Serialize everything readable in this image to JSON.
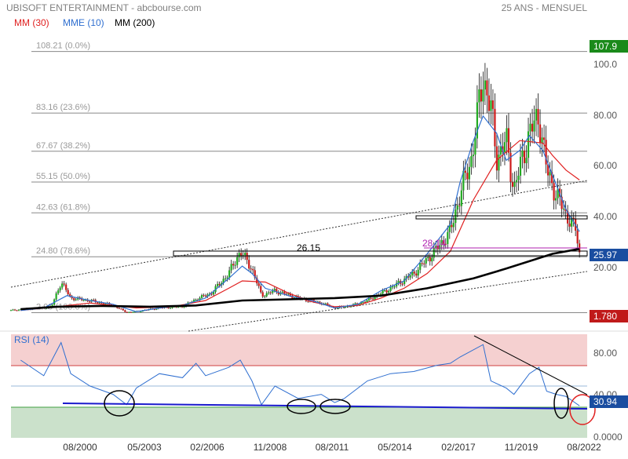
{
  "header": {
    "title": "UBISOFT ENTERTAINMENT - abcbourse.com",
    "period": "25 ANS - MENSUEL",
    "legend": [
      {
        "label": "MM (30)",
        "color": "#e02020"
      },
      {
        "label": "MME (10)",
        "color": "#2f6fd0"
      },
      {
        "label": "MM (200)",
        "color": "#000000"
      }
    ]
  },
  "price_panel": {
    "y_ticks": [
      "100.0",
      "80.00",
      "60.00",
      "40.00",
      "20.00"
    ],
    "last_label": "107.9",
    "current_label": "25.97",
    "low_label": "1.780",
    "fib_levels": [
      {
        "label": "108.21  (0.0%)",
        "value": 108.21
      },
      {
        "label": "83.16  (23.6%)",
        "value": 83.16
      },
      {
        "label": "67.67  (38.2%)",
        "value": 67.67
      },
      {
        "label": "55.15  (50.0%)",
        "value": 55.15
      },
      {
        "label": "42.63  (61.8%)",
        "value": 42.63
      },
      {
        "label": "24.80  (78.6%)",
        "value": 24.8
      },
      {
        "label": "2.09  (100.0%)",
        "value": 2.09
      }
    ],
    "support_label": "26.15",
    "support_label_value": 26.15,
    "target_label": "28.14",
    "target_label_value": 28.14
  },
  "rsi_panel": {
    "label": "RSI (14)",
    "y_ticks": [
      "80.00",
      "40.00",
      "0.0000"
    ],
    "current_label": "30.94"
  },
  "x_axis": {
    "labels": [
      "08/2000",
      "05/2003",
      "02/2006",
      "11/2008",
      "08/2011",
      "05/2014",
      "02/2017",
      "11/2019",
      "08/2022"
    ]
  },
  "chart_data": [
    {
      "type": "candlestick",
      "title": "UBISOFT ENTERTAINMENT - abcbourse.com",
      "ylim": [
        0,
        110
      ],
      "y_ticks": [
        20,
        40,
        60,
        80,
        100
      ],
      "x_range": [
        "1998-01",
        "2022-12"
      ],
      "series": [
        {
          "name": "MM (30)",
          "color": "#e02020",
          "points": [
            [
              "1998-06",
              3.0
            ],
            [
              "2000-01",
              4.5
            ],
            [
              "2001-06",
              6.0
            ],
            [
              "2003-06",
              4.0
            ],
            [
              "2005-01",
              4.5
            ],
            [
              "2006-06",
              7.0
            ],
            [
              "2007-06",
              12.0
            ],
            [
              "2008-01",
              15.0
            ],
            [
              "2009-01",
              14.5
            ],
            [
              "2010-01",
              10.0
            ],
            [
              "2011-01",
              6.5
            ],
            [
              "2012-01",
              4.5
            ],
            [
              "2013-01",
              5.0
            ],
            [
              "2014-01",
              8.0
            ],
            [
              "2015-01",
              12.0
            ],
            [
              "2016-01",
              18.0
            ],
            [
              "2017-01",
              27.0
            ],
            [
              "2018-01",
              48.0
            ],
            [
              "2019-01",
              64.0
            ],
            [
              "2020-01",
              72.0
            ],
            [
              "2021-01",
              71.0
            ],
            [
              "2021-06",
              66.0
            ],
            [
              "2022-01",
              60.0
            ],
            [
              "2022-08",
              56.0
            ]
          ]
        },
        {
          "name": "MME (10)",
          "color": "#2f6fd0",
          "points": [
            [
              "1998-06",
              3.0
            ],
            [
              "1999-06",
              4.0
            ],
            [
              "2000-06",
              9.0
            ],
            [
              "2001-06",
              7.0
            ],
            [
              "2002-06",
              5.5
            ],
            [
              "2003-06",
              2.5
            ],
            [
              "2004-06",
              4.0
            ],
            [
              "2005-06",
              5.0
            ],
            [
              "2006-06",
              8.0
            ],
            [
              "2007-06",
              16.0
            ],
            [
              "2008-01",
              21.0
            ],
            [
              "2008-06",
              18.0
            ],
            [
              "2009-01",
              12.0
            ],
            [
              "2010-01",
              9.0
            ],
            [
              "2011-01",
              7.0
            ],
            [
              "2012-01",
              4.0
            ],
            [
              "2013-01",
              5.5
            ],
            [
              "2014-01",
              11.0
            ],
            [
              "2015-01",
              15.0
            ],
            [
              "2016-01",
              26.0
            ],
            [
              "2017-01",
              38.0
            ],
            [
              "2017-06",
              55.0
            ],
            [
              "2018-01",
              72.0
            ],
            [
              "2018-06",
              82.0
            ],
            [
              "2019-01",
              75.0
            ],
            [
              "2019-06",
              64.0
            ],
            [
              "2020-01",
              68.0
            ],
            [
              "2020-06",
              74.0
            ],
            [
              "2021-01",
              68.0
            ],
            [
              "2021-06",
              58.0
            ],
            [
              "2022-01",
              44.0
            ],
            [
              "2022-08",
              35.0
            ]
          ]
        },
        {
          "name": "MM (200)",
          "color": "#000000",
          "points": [
            [
              "1998-06",
              3.5
            ],
            [
              "2000-01",
              4.5
            ],
            [
              "2002-01",
              4.8
            ],
            [
              "2004-01",
              4.5
            ],
            [
              "2006-01",
              5.0
            ],
            [
              "2008-01",
              7.0
            ],
            [
              "2010-01",
              7.5
            ],
            [
              "2012-01",
              8.0
            ],
            [
              "2014-01",
              9.0
            ],
            [
              "2016-01",
              12.0
            ],
            [
              "2018-01",
              16.0
            ],
            [
              "2019-06",
              20.0
            ],
            [
              "2020-06",
              23.0
            ],
            [
              "2021-06",
              26.0
            ],
            [
              "2022-08",
              28.0
            ]
          ]
        }
      ],
      "price_close": [
        [
          "1998-01",
          3.0
        ],
        [
          "1999-01",
          3.8
        ],
        [
          "1999-10",
          4.5
        ],
        [
          "2000-03",
          14.5
        ],
        [
          "2000-08",
          8.0
        ],
        [
          "2001-06",
          7.0
        ],
        [
          "2002-06",
          5.0
        ],
        [
          "2003-01",
          2.2
        ],
        [
          "2003-06",
          2.5
        ],
        [
          "2004-06",
          4.0
        ],
        [
          "2005-06",
          4.5
        ],
        [
          "2006-01",
          7.5
        ],
        [
          "2006-09",
          10.0
        ],
        [
          "2007-06",
          18.0
        ],
        [
          "2007-12",
          27.0
        ],
        [
          "2008-06",
          20.0
        ],
        [
          "2008-11",
          9.0
        ],
        [
          "2009-06",
          11.0
        ],
        [
          "2010-06",
          8.0
        ],
        [
          "2011-06",
          6.0
        ],
        [
          "2012-01",
          4.0
        ],
        [
          "2012-10",
          5.0
        ],
        [
          "2013-06",
          7.0
        ],
        [
          "2014-06",
          12.0
        ],
        [
          "2015-06",
          18.0
        ],
        [
          "2016-06",
          28.0
        ],
        [
          "2017-01",
          35.0
        ],
        [
          "2017-06",
          50.0
        ],
        [
          "2017-12",
          65.0
        ],
        [
          "2018-06",
          98.0
        ],
        [
          "2018-10",
          85.0
        ],
        [
          "2019-01",
          65.0
        ],
        [
          "2019-06",
          72.0
        ],
        [
          "2019-10",
          52.0
        ],
        [
          "2020-06",
          75.0
        ],
        [
          "2020-11",
          82.0
        ],
        [
          "2021-03",
          60.0
        ],
        [
          "2021-08",
          50.0
        ],
        [
          "2022-01",
          42.0
        ],
        [
          "2022-06",
          36.0
        ],
        [
          "2022-08",
          25.97
        ]
      ],
      "fib_levels": [
        108.21,
        83.16,
        67.67,
        55.15,
        42.63,
        24.8,
        2.09
      ],
      "annotations": [
        "26.15",
        "28.14"
      ]
    },
    {
      "type": "line",
      "title": "RSI (14)",
      "ylim": [
        0,
        100
      ],
      "y_ticks": [
        0,
        40,
        80
      ],
      "zones": {
        "overbought": 70,
        "oversold": 30,
        "mid": 50
      },
      "series": [
        {
          "name": "RSI (14)",
          "color": "#2f6fd0",
          "points": [
            [
              "1998-06",
              75
            ],
            [
              "1999-06",
              60
            ],
            [
              "2000-03",
              92
            ],
            [
              "2000-08",
              62
            ],
            [
              "2001-06",
              50
            ],
            [
              "2002-06",
              42
            ],
            [
              "2003-01",
              32
            ],
            [
              "2003-06",
              48
            ],
            [
              "2004-06",
              62
            ],
            [
              "2005-06",
              58
            ],
            [
              "2006-01",
              72
            ],
            [
              "2006-06",
              60
            ],
            [
              "2007-06",
              68
            ],
            [
              "2007-12",
              75
            ],
            [
              "2008-06",
              55
            ],
            [
              "2008-11",
              32
            ],
            [
              "2009-06",
              50
            ],
            [
              "2010-06",
              38
            ],
            [
              "2011-06",
              42
            ],
            [
              "2012-01",
              34
            ],
            [
              "2012-06",
              38
            ],
            [
              "2013-06",
              55
            ],
            [
              "2014-06",
              62
            ],
            [
              "2015-06",
              64
            ],
            [
              "2016-06",
              70
            ],
            [
              "2017-01",
              72
            ],
            [
              "2017-06",
              78
            ],
            [
              "2018-06",
              90
            ],
            [
              "2018-10",
              55
            ],
            [
              "2019-06",
              48
            ],
            [
              "2019-10",
              42
            ],
            [
              "2020-06",
              62
            ],
            [
              "2020-11",
              68
            ],
            [
              "2021-03",
              45
            ],
            [
              "2021-08",
              42
            ],
            [
              "2022-01",
              40
            ],
            [
              "2022-08",
              30.94
            ]
          ]
        }
      ],
      "trendlines": [
        "support ~30",
        "falling resistance from 2018 peak"
      ]
    }
  ]
}
